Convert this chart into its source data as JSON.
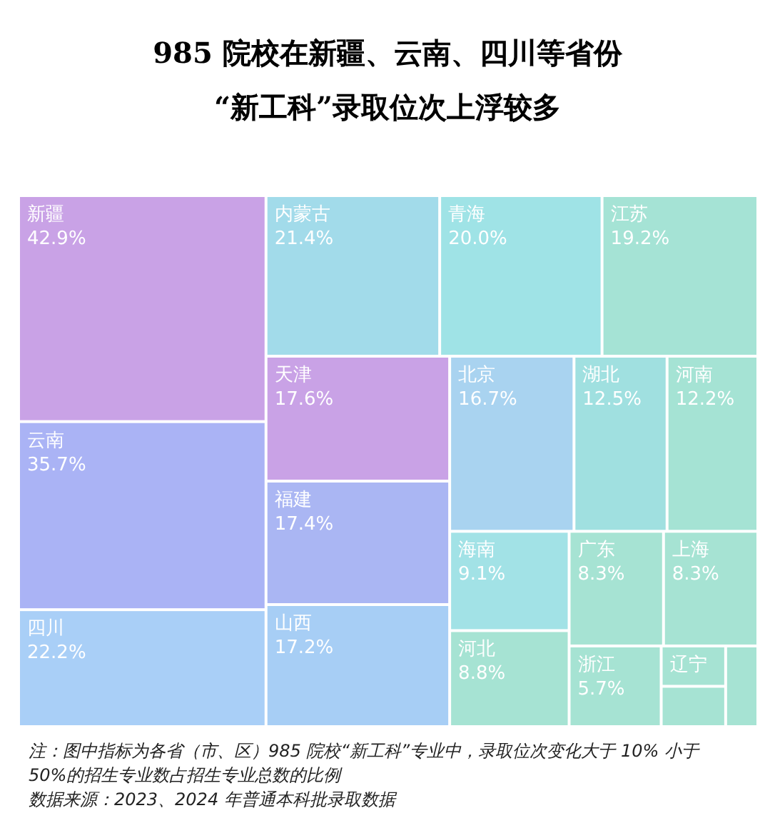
{
  "chart_data": {
    "type": "other",
    "title": "985 院校在新疆、云南、四川等省份\n“新工科”录取位次上浮较多",
    "categories": [
      "新疆",
      "云南",
      "四川",
      "内蒙古",
      "青海",
      "江苏",
      "天津",
      "福建",
      "山西",
      "北京",
      "湖北",
      "河南",
      "海南",
      "河北",
      "广东",
      "上海",
      "浙江",
      "辽宁",
      null,
      null
    ],
    "values": [
      42.9,
      35.7,
      22.2,
      21.4,
      20.0,
      19.2,
      17.6,
      17.4,
      17.2,
      16.7,
      12.5,
      12.2,
      9.1,
      8.8,
      8.3,
      8.3,
      5.7,
      null,
      null,
      null
    ],
    "value_labels": [
      "42.9%",
      "35.7%",
      "22.2%",
      "21.4%",
      "20.0%",
      "19.2%",
      "17.6%",
      "17.4%",
      "17.2%",
      "16.7%",
      "12.5%",
      "12.2%",
      "9.1%",
      "8.8%",
      "8.3%",
      "8.3%",
      "5.7%",
      null,
      null,
      null
    ],
    "colors": [
      "#c9a2e6",
      "#aab3f5",
      "#a9cff7",
      "#a2dbea",
      "#9fe3e6",
      "#a5e3d5",
      "#c9a2e6",
      "#aab6f3",
      "#a7cef5",
      "#a9d3f0",
      "#a0e0e0",
      "#a5e3d4",
      "#a2e2e6",
      "#a6e3d3",
      "#a6e3d3",
      "#a6e3d3",
      "#a6e3d3",
      "#a6e3d3",
      "#a6e3d3",
      "#a6e3d3"
    ],
    "annotations": [
      "注：图中指标为各省（市、区）985 院校“新工科”专业中，录取位次变化大于 10% 小于 50%的招生专业数占招生专业总数的比例",
      "数据来源：2023、2024 年普通本科批录取数据"
    ]
  }
}
